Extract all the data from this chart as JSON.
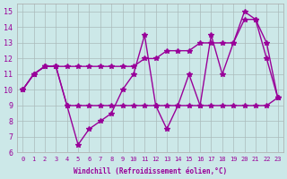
{
  "xlabel": "Windchill (Refroidissement éolien,°C)",
  "background_color": "#cce8e8",
  "line_color": "#990099",
  "grid_color": "#aabbbb",
  "x": [
    0,
    1,
    2,
    3,
    4,
    5,
    6,
    7,
    8,
    9,
    10,
    11,
    12,
    13,
    14,
    15,
    16,
    17,
    18,
    19,
    20,
    21,
    22,
    23
  ],
  "series": [
    [
      10,
      11,
      11.5,
      11.5,
      9,
      6.5,
      7.5,
      8,
      8.5,
      10,
      11,
      13.5,
      9,
      7.5,
      9,
      11,
      9,
      13.5,
      11,
      13,
      15,
      14.5,
      12,
      9.5
    ],
    [
      10,
      11,
      11.5,
      11.5,
      11.5,
      11.5,
      11.5,
      11.5,
      11.5,
      11.5,
      11.5,
      12,
      12,
      12.5,
      12.5,
      12.5,
      13,
      13,
      13,
      13,
      14.5,
      14.5,
      13,
      9.5
    ],
    [
      10,
      11,
      11.5,
      11.5,
      9,
      9,
      9,
      9,
      9,
      9,
      9,
      9,
      9,
      9,
      9,
      9,
      9,
      9,
      9,
      9,
      9,
      9,
      9,
      9.5
    ]
  ],
  "ylim": [
    6,
    15.5
  ],
  "xlim": [
    -0.5,
    23.5
  ],
  "yticks": [
    6,
    7,
    8,
    9,
    10,
    11,
    12,
    13,
    14,
    15
  ],
  "xticks": [
    0,
    1,
    2,
    3,
    4,
    5,
    6,
    7,
    8,
    9,
    10,
    11,
    12,
    13,
    14,
    15,
    16,
    17,
    18,
    19,
    20,
    21,
    22,
    23
  ]
}
